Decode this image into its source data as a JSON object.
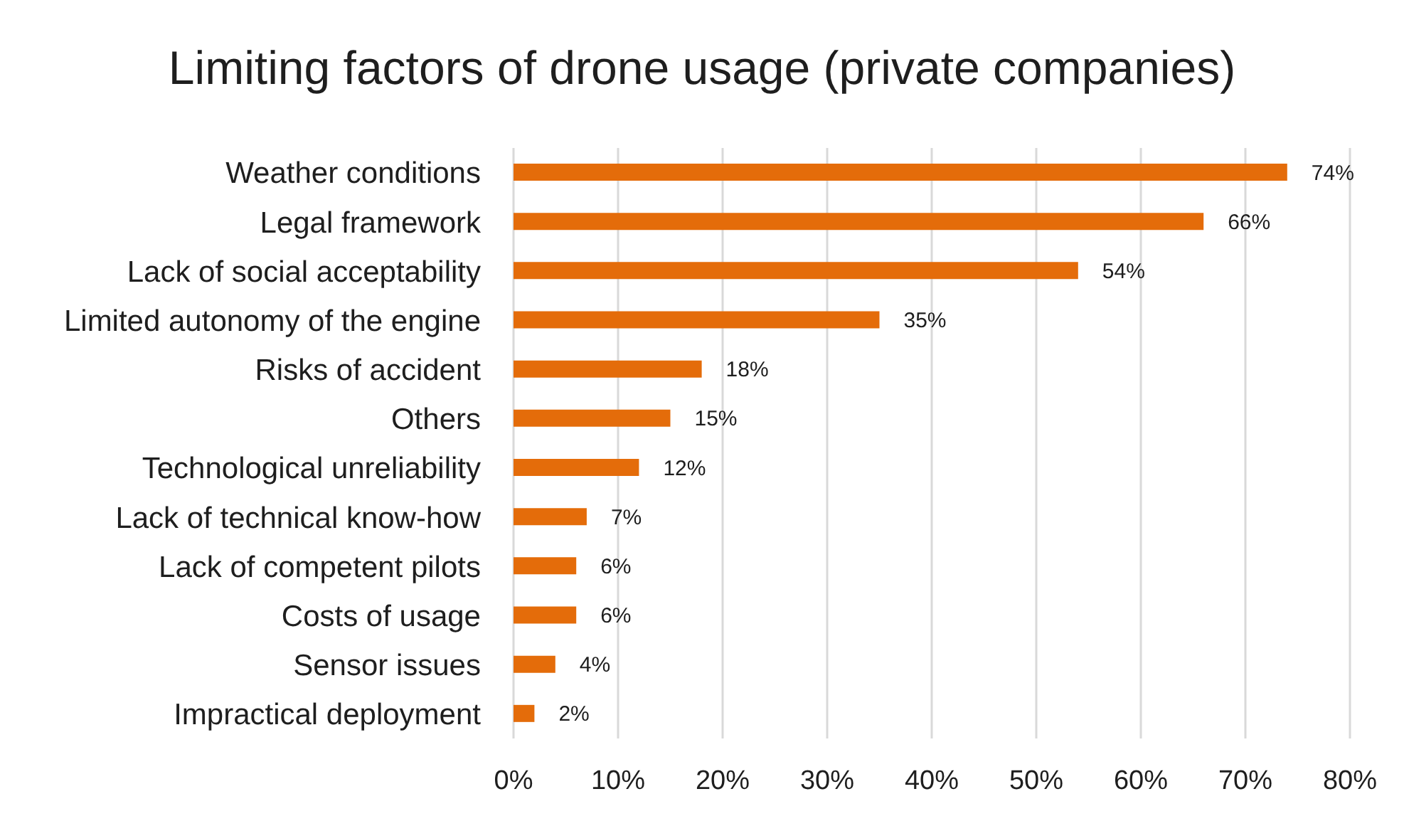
{
  "chart_data": {
    "type": "bar",
    "orientation": "horizontal",
    "title": "Limiting factors of drone usage (private companies)",
    "categories": [
      "Weather conditions",
      "Legal framework",
      "Lack of social acceptability",
      "Limited autonomy of the engine",
      "Risks of accident",
      "Others",
      "Technological unreliability",
      "Lack of technical know-how",
      "Lack of competent pilots",
      "Costs of usage",
      "Sensor issues",
      "Impractical deployment"
    ],
    "values": [
      74,
      66,
      54,
      35,
      18,
      15,
      12,
      7,
      6,
      6,
      4,
      2
    ],
    "color": "#e46c0a",
    "value_labels": [
      "74%",
      "66%",
      "54%",
      "35%",
      "18%",
      "15%",
      "12%",
      "7%",
      "6%",
      "6%",
      "4%",
      "2%"
    ],
    "xlim": [
      0,
      80
    ],
    "xticks": [
      {
        "value": 0,
        "label": "0%"
      },
      {
        "value": 10,
        "label": "10%"
      },
      {
        "value": 20,
        "label": "20%"
      },
      {
        "value": 30,
        "label": "30%"
      },
      {
        "value": 40,
        "label": "40%"
      },
      {
        "value": 50,
        "label": "50%"
      },
      {
        "value": 60,
        "label": "60%"
      },
      {
        "value": 70,
        "label": "70%"
      },
      {
        "value": 80,
        "label": "80%"
      }
    ],
    "grid": "x"
  }
}
